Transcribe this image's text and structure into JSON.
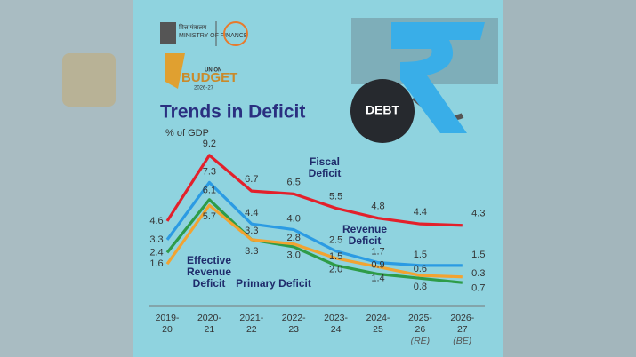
{
  "header": {
    "ministry_hindi": "वित्त मंत्रालय",
    "ministry": "MINISTRY OF FINANCE",
    "budget_top": "UNION",
    "budget": "BUDGET",
    "budget_year": "2026-27",
    "graphic_label": "DEBT"
  },
  "chart_data": {
    "type": "line",
    "title": "Trends in Deficit",
    "subtitle": "% of GDP",
    "categories": [
      [
        "2019-",
        "20"
      ],
      [
        "2020-",
        "21"
      ],
      [
        "2021-",
        "22"
      ],
      [
        "2022-",
        "23"
      ],
      [
        "2023-",
        "24"
      ],
      [
        "2024-",
        "25"
      ],
      [
        "2025-",
        "26",
        "(RE)"
      ],
      [
        "2026-",
        "27",
        "(BE)"
      ]
    ],
    "ylim": [
      0,
      10
    ],
    "series": [
      {
        "name": "Fiscal Deficit",
        "color": "#e3202b",
        "values": [
          4.6,
          9.2,
          6.7,
          6.5,
          5.5,
          4.8,
          4.4,
          4.3
        ],
        "value_labels": [
          "4.6",
          "9.2",
          "6.7",
          "6.5",
          "5.5",
          "4.8",
          "4.4",
          "4.3"
        ]
      },
      {
        "name": "Revenue Deficit",
        "color": "#2b9be3",
        "values": [
          3.3,
          7.3,
          4.4,
          4.0,
          2.5,
          1.7,
          1.5,
          1.5
        ],
        "value_labels": [
          "3.3",
          "7.3",
          "4.4",
          "4.0",
          "2.5",
          "1.7",
          "1.5",
          "1.5"
        ]
      },
      {
        "name": "Effective Revenue Deficit",
        "color": "#2e9c48",
        "values": [
          2.4,
          6.1,
          3.3,
          2.8,
          1.5,
          0.9,
          0.6,
          0.3
        ],
        "value_labels": [
          "2.4",
          "6.1",
          "3.3",
          "2.8",
          "1.5",
          "0.9",
          "0.6",
          "0.3"
        ]
      },
      {
        "name": "Primary Deficit",
        "color": "#f2a331",
        "values": [
          1.6,
          5.7,
          3.3,
          3.0,
          2.0,
          1.4,
          0.8,
          0.7
        ],
        "value_labels": [
          "1.6",
          "5.7",
          "3.3",
          "3.0",
          "2.0",
          "1.4",
          "0.8",
          "0.7"
        ]
      }
    ]
  }
}
